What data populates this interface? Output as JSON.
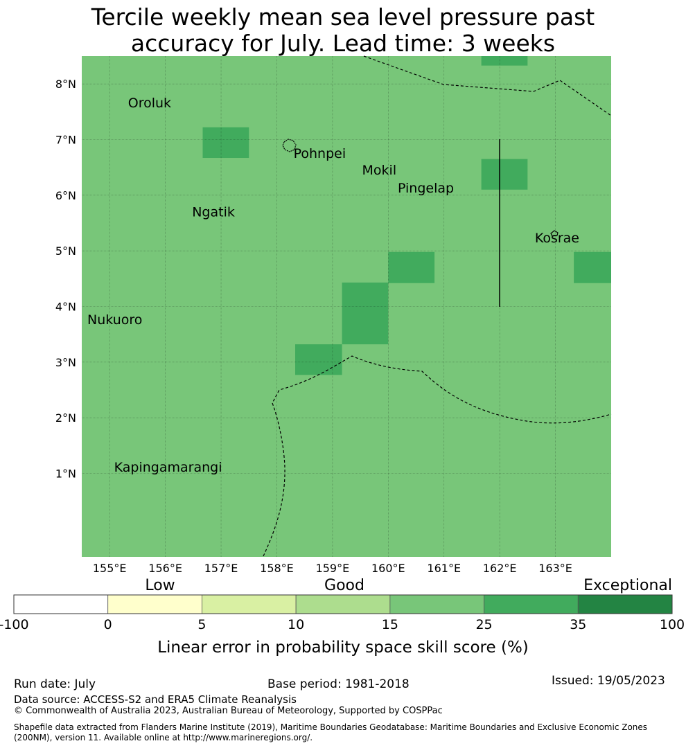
{
  "title": {
    "line1": "Tercile weekly mean sea level pressure past",
    "line2": "accuracy for July. Lead time: 3 weeks"
  },
  "map": {
    "lon_range": [
      154.5,
      164.0
    ],
    "lat_range": [
      -0.5,
      8.5
    ],
    "lon_ticks": [
      {
        "value": 155,
        "label": "155°E"
      },
      {
        "value": 156,
        "label": "156°E"
      },
      {
        "value": 157,
        "label": "157°E"
      },
      {
        "value": 158,
        "label": "158°E"
      },
      {
        "value": 159,
        "label": "159°E"
      },
      {
        "value": 160,
        "label": "160°E"
      },
      {
        "value": 161,
        "label": "161°E"
      },
      {
        "value": 162,
        "label": "162°E"
      },
      {
        "value": 163,
        "label": "163°E"
      }
    ],
    "lat_ticks": [
      {
        "value": 8,
        "label": "8°N"
      },
      {
        "value": 7,
        "label": "7°N"
      },
      {
        "value": 6,
        "label": "6°N"
      },
      {
        "value": 5,
        "label": "5°N"
      },
      {
        "value": 4,
        "label": "4°N"
      },
      {
        "value": 3,
        "label": "3°N"
      },
      {
        "value": 2,
        "label": "2°N"
      },
      {
        "value": 1,
        "label": "1°N"
      }
    ],
    "background_color": "#78c679",
    "highlight_color": "#41ab5d",
    "highlight_cells": [
      {
        "lon": [
          161.67,
          162.5
        ],
        "lat": [
          8.33,
          8.5
        ]
      },
      {
        "lon": [
          156.67,
          157.5
        ],
        "lat": [
          6.67,
          7.22
        ]
      },
      {
        "lon": [
          161.67,
          162.5
        ],
        "lat": [
          6.1,
          6.65
        ]
      },
      {
        "lon": [
          160.0,
          160.83
        ],
        "lat": [
          4.42,
          4.98
        ]
      },
      {
        "lon": [
          163.33,
          164.0
        ],
        "lat": [
          4.42,
          4.98
        ]
      },
      {
        "lon": [
          159.17,
          160.0
        ],
        "lat": [
          3.32,
          4.43
        ]
      },
      {
        "lon": [
          158.33,
          159.17
        ],
        "lat": [
          2.77,
          3.32
        ]
      }
    ],
    "places": [
      {
        "name": "Oroluk",
        "lon": 155.33,
        "lat": 7.58
      },
      {
        "name": "Pohnpei",
        "lon": 158.3,
        "lat": 6.67
      },
      {
        "name": "Mokil",
        "lon": 159.53,
        "lat": 6.37
      },
      {
        "name": "Pingelap",
        "lon": 160.17,
        "lat": 6.05
      },
      {
        "name": "Ngatik",
        "lon": 156.48,
        "lat": 5.62
      },
      {
        "name": "Kosrae",
        "lon": 162.63,
        "lat": 5.15
      },
      {
        "name": "Nukuoro",
        "lon": 154.6,
        "lat": 3.68
      },
      {
        "name": "Kapingamarangi",
        "lon": 155.08,
        "lat": 1.03
      }
    ]
  },
  "legend": {
    "categories": [
      "Low",
      "Good",
      "Exceptional"
    ],
    "bins": [
      {
        "color": "#ffffff"
      },
      {
        "color": "#ffffcc"
      },
      {
        "color": "#d9f0a3"
      },
      {
        "color": "#addd8e"
      },
      {
        "color": "#78c679"
      },
      {
        "color": "#41ab5d"
      },
      {
        "color": "#238443"
      }
    ],
    "tick_labels": [
      "-100",
      "0",
      "5",
      "10",
      "15",
      "25",
      "35",
      "100"
    ],
    "label": "Linear error in probability space skill score (%)"
  },
  "footer": {
    "run_date": "Run date: July",
    "base_period": "Base period: 1981-2018",
    "issued": "Issued: 19/05/2023",
    "data_source": "Data source: ACCESS-S2 and ERA5 Climate Reanalysis",
    "copyright": "© Commonwealth of Australia 2023, Australian Bureau of Meteorology, Supported by COSPPac",
    "shapefile_line1": "Shapefile data extracted from Flanders Marine Institute (2019), Maritime Boundaries Geodatabase: Maritime Boundaries and Exclusive Economic Zones",
    "shapefile_line2": "(200NM), version 11. Available online at http://www.marineregions.org/."
  }
}
